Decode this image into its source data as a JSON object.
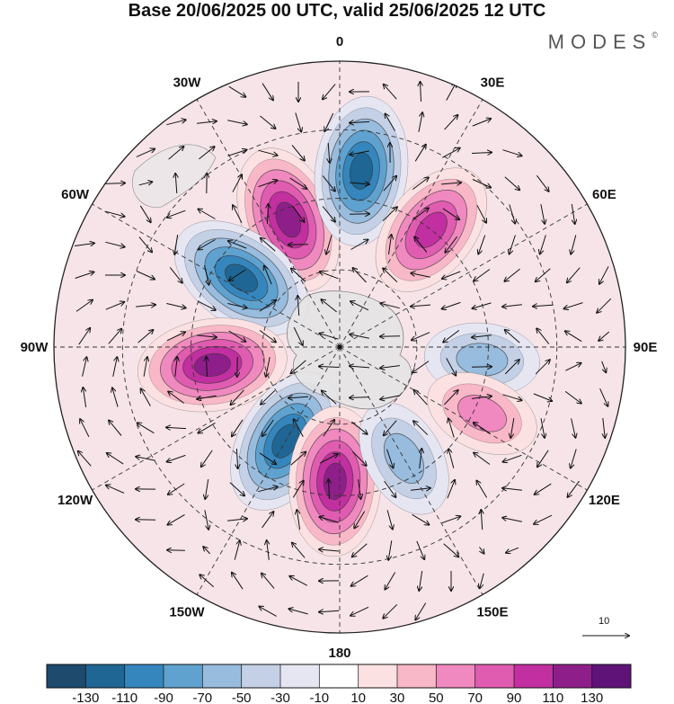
{
  "title": "Base 20/06/2025 00 UTC, valid 25/06/2025 12 UTC",
  "brand": {
    "name": "MODES",
    "mark": "©"
  },
  "map": {
    "projection": "north-polar-stereographic",
    "longitude_labels": [
      {
        "text": "0",
        "lon": 0
      },
      {
        "text": "30E",
        "lon": 30
      },
      {
        "text": "60E",
        "lon": 60
      },
      {
        "text": "90E",
        "lon": 90
      },
      {
        "text": "120E",
        "lon": 120
      },
      {
        "text": "150E",
        "lon": 150
      },
      {
        "text": "180",
        "lon": 180
      },
      {
        "text": "150W",
        "lon": -150
      },
      {
        "text": "120W",
        "lon": -120
      },
      {
        "text": "90W",
        "lon": -90
      },
      {
        "text": "60W",
        "lon": -60
      },
      {
        "text": "30W",
        "lon": -30
      }
    ],
    "anomaly_centers": [
      {
        "sign": "positive",
        "lon": -22,
        "rfrac": 0.48,
        "peak": 130
      },
      {
        "sign": "negative",
        "lon": 7,
        "rfrac": 0.62,
        "peak": -130
      },
      {
        "sign": "positive",
        "lon": 38,
        "rfrac": 0.52,
        "peak": 115
      },
      {
        "sign": "negative",
        "lon": -55,
        "rfrac": 0.42,
        "peak": -130
      },
      {
        "sign": "positive",
        "lon": -98,
        "rfrac": 0.45,
        "peak": 130
      },
      {
        "sign": "negative",
        "lon": 95,
        "rfrac": 0.5,
        "peak": -70
      },
      {
        "sign": "negative",
        "lon": -150,
        "rfrac": 0.38,
        "peak": -130
      },
      {
        "sign": "positive",
        "lon": -178,
        "rfrac": 0.47,
        "peak": 130
      },
      {
        "sign": "positive",
        "lon": 115,
        "rfrac": 0.55,
        "peak": 70
      },
      {
        "sign": "negative",
        "lon": 150,
        "rfrac": 0.45,
        "peak": -80
      }
    ],
    "reference_vector": {
      "label": "10"
    }
  },
  "colorbar": {
    "colors": [
      "#1d4a6d",
      "#1f6694",
      "#3586bd",
      "#5fa2cf",
      "#98bcde",
      "#c3d0e6",
      "#e6e6f3",
      "#ffffff",
      "#fbe1e1",
      "#f8b8c8",
      "#f089bf",
      "#e05cb1",
      "#c22fa0",
      "#8e1f8a",
      "#5f1379"
    ],
    "tick_labels": [
      "-130",
      "-110",
      "-90",
      "-70",
      "-50",
      "-30",
      "-10",
      "10",
      "30",
      "50",
      "70",
      "90",
      "110",
      "130"
    ]
  }
}
